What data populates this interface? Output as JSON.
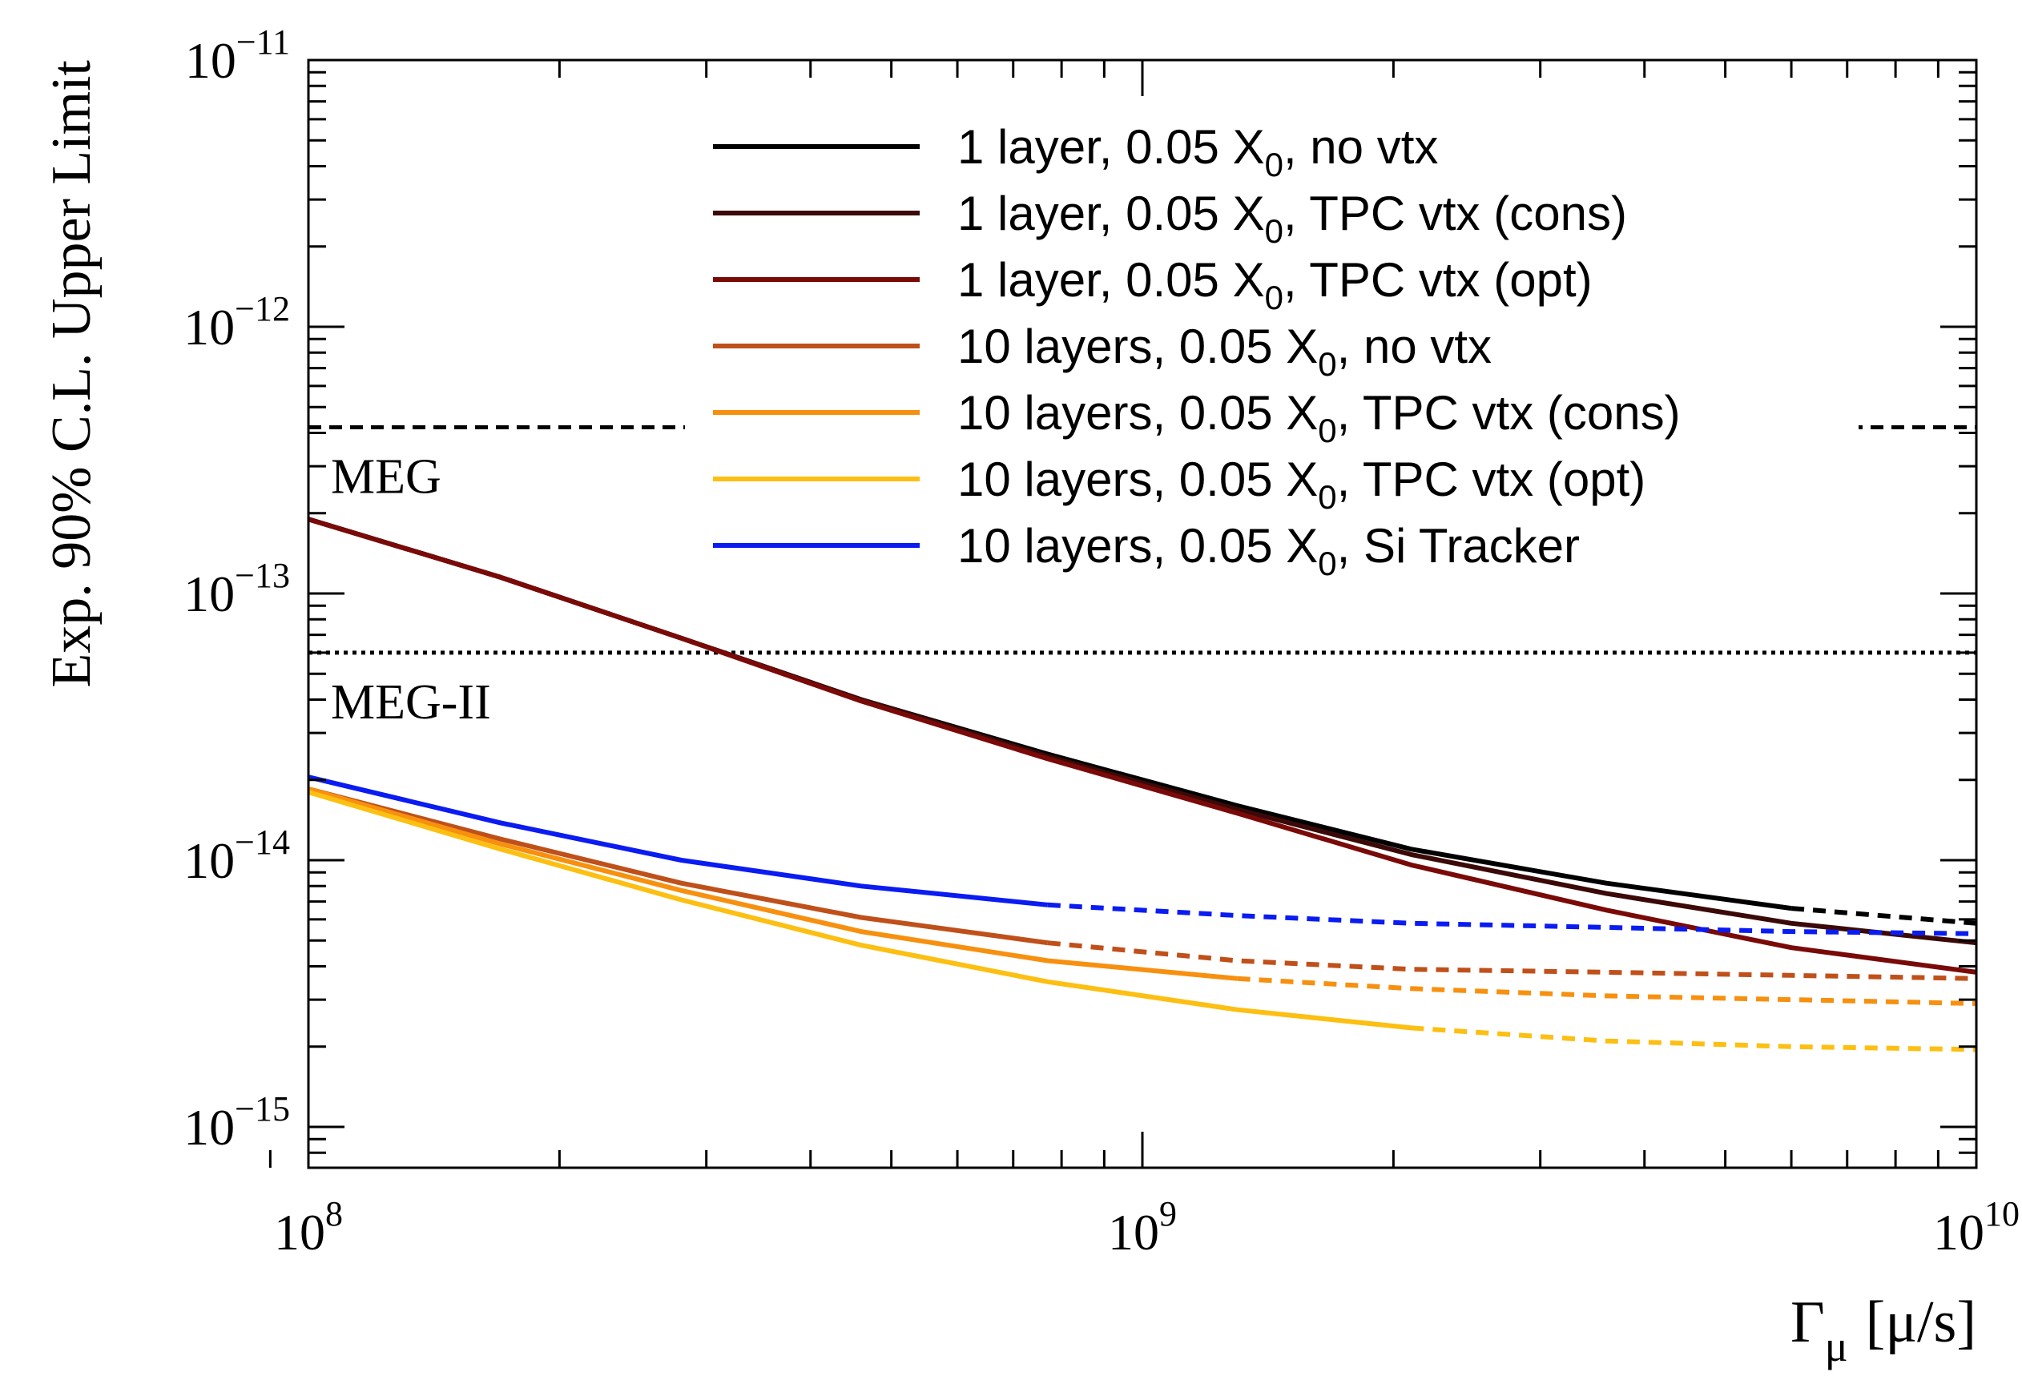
{
  "chart_data": {
    "type": "line",
    "title": "",
    "xlabel": "Γ",
    "xlabel_sub": "μ",
    "xlabel_unit": "[μ/s]",
    "ylabel": "Exp. 90% C.L. Upper Limit",
    "xscale": "log",
    "yscale": "log",
    "xlim": [
      100000000.0,
      10000000000.0
    ],
    "ylim": [
      8e-16,
      1e-11
    ],
    "x_ticks": [
      {
        "value": 100000000.0,
        "base": "10",
        "exp": "8"
      },
      {
        "value": 1000000000.0,
        "base": "10",
        "exp": "9"
      },
      {
        "value": 10000000000.0,
        "base": "10",
        "exp": "10"
      }
    ],
    "y_ticks": [
      {
        "value": 1e-15,
        "base": "10",
        "exp": "−15"
      },
      {
        "value": 1e-14,
        "base": "10",
        "exp": "−14"
      },
      {
        "value": 1e-13,
        "base": "10",
        "exp": "−13"
      },
      {
        "value": 1e-12,
        "base": "10",
        "exp": "−12"
      },
      {
        "value": 1e-11,
        "base": "10",
        "exp": "−11"
      }
    ],
    "reference_lines": [
      {
        "name": "MEG",
        "label": "MEG",
        "value": 4.2e-13,
        "style": "dashed",
        "color": "#000000"
      },
      {
        "name": "MEG-II",
        "label": "MEG-II",
        "value": 6e-14,
        "style": "dotted",
        "color": "#000000"
      }
    ],
    "legend_position": "top-right",
    "series": [
      {
        "name": "1 layer, 0.05 X0, no vtx",
        "legend_main": "1 layer, 0.05 X",
        "legend_sub": "0",
        "legend_rest": ", no vtx",
        "color": "#000000",
        "solid": {
          "x": [
            100000000.0,
            170000000.0,
            280000000.0,
            460000000.0,
            770000000.0,
            1300000000.0,
            2100000000.0,
            3600000000.0,
            6000000000.0
          ],
          "y": [
            1.9e-13,
            1.15e-13,
            6.8e-14,
            4e-14,
            2.5e-14,
            1.6e-14,
            1.1e-14,
            8.2e-15,
            6.6e-15
          ]
        },
        "dashed": {
          "x": [
            6000000000.0,
            10000000000.0
          ],
          "y": [
            6.6e-15,
            5.8e-15
          ]
        }
      },
      {
        "name": "1 layer, 0.05 X0, TPC vtx (cons)",
        "legend_main": "1 layer, 0.05 X",
        "legend_sub": "0",
        "legend_rest": ", TPC vtx (cons)",
        "color": "#3b0a08",
        "solid": {
          "x": [
            100000000.0,
            170000000.0,
            280000000.0,
            460000000.0,
            770000000.0,
            1300000000.0,
            2100000000.0,
            3600000000.0,
            6000000000.0,
            10000000000.0
          ],
          "y": [
            1.9e-13,
            1.15e-13,
            6.8e-14,
            4e-14,
            2.45e-14,
            1.55e-14,
            1.05e-14,
            7.5e-15,
            5.8e-15,
            4.9e-15
          ]
        }
      },
      {
        "name": "1 layer, 0.05 X0, TPC vtx (opt)",
        "legend_main": "1 layer, 0.05 X",
        "legend_sub": "0",
        "legend_rest": ", TPC vtx (opt)",
        "color": "#7a0a08",
        "solid": {
          "x": [
            100000000.0,
            170000000.0,
            280000000.0,
            460000000.0,
            770000000.0,
            1300000000.0,
            2100000000.0,
            3600000000.0,
            6000000000.0,
            10000000000.0
          ],
          "y": [
            1.9e-13,
            1.15e-13,
            6.8e-14,
            3.95e-14,
            2.4e-14,
            1.5e-14,
            9.6e-15,
            6.5e-15,
            4.7e-15,
            3.8e-15
          ]
        }
      },
      {
        "name": "10 layers, 0.05 X0, no vtx",
        "legend_main": "10 layers, 0.05 X",
        "legend_sub": "0",
        "legend_rest": ", no vtx",
        "color": "#c0501a",
        "solid": {
          "x": [
            100000000.0,
            170000000.0,
            280000000.0,
            460000000.0,
            770000000.0
          ],
          "y": [
            1.85e-14,
            1.2e-14,
            8.2e-15,
            6.1e-15,
            4.9e-15
          ]
        },
        "dashed": {
          "x": [
            770000000.0,
            1300000000.0,
            2100000000.0,
            3600000000.0,
            6000000000.0,
            10000000000.0
          ],
          "y": [
            4.9e-15,
            4.2e-15,
            3.9e-15,
            3.8e-15,
            3.7e-15,
            3.6e-15
          ]
        }
      },
      {
        "name": "10 layers, 0.05 X0, TPC vtx (cons)",
        "legend_main": "10 layers, 0.05 X",
        "legend_sub": "0",
        "legend_rest": ", TPC vtx (cons)",
        "color": "#f7900f",
        "solid": {
          "x": [
            100000000.0,
            170000000.0,
            280000000.0,
            460000000.0,
            770000000.0,
            1300000000.0
          ],
          "y": [
            1.85e-14,
            1.15e-14,
            7.7e-15,
            5.4e-15,
            4.2e-15,
            3.6e-15
          ]
        },
        "dashed": {
          "x": [
            1300000000.0,
            2100000000.0,
            3600000000.0,
            6000000000.0,
            10000000000.0
          ],
          "y": [
            3.6e-15,
            3.3e-15,
            3.1e-15,
            3e-15,
            2.9e-15
          ]
        }
      },
      {
        "name": "10 layers, 0.05 X0, TPC vtx (opt)",
        "legend_main": "10 layers, 0.05 X",
        "legend_sub": "0",
        "legend_rest": ", TPC vtx (opt)",
        "color": "#fcbf12",
        "solid": {
          "x": [
            100000000.0,
            170000000.0,
            280000000.0,
            460000000.0,
            770000000.0,
            1300000000.0,
            2100000000.0
          ],
          "y": [
            1.8e-14,
            1.1e-14,
            7.1e-15,
            4.8e-15,
            3.5e-15,
            2.75e-15,
            2.35e-15
          ]
        },
        "dashed": {
          "x": [
            2100000000.0,
            3600000000.0,
            6000000000.0,
            10000000000.0
          ],
          "y": [
            2.35e-15,
            2.1e-15,
            2e-15,
            1.95e-15
          ]
        }
      },
      {
        "name": "10 layers, 0.05 X0, Si Tracker",
        "legend_main": "10 layers, 0.05 X",
        "legend_sub": "0",
        "legend_rest": ", Si Tracker",
        "color": "#0a1cf2",
        "solid": {
          "x": [
            100000000.0,
            170000000.0,
            280000000.0,
            460000000.0,
            770000000.0
          ],
          "y": [
            2.05e-14,
            1.38e-14,
            1e-14,
            8e-15,
            6.8e-15
          ]
        },
        "dashed": {
          "x": [
            770000000.0,
            1300000000.0,
            2100000000.0,
            3600000000.0,
            6000000000.0,
            10000000000.0
          ],
          "y": [
            6.8e-15,
            6.2e-15,
            5.8e-15,
            5.6e-15,
            5.4e-15,
            5.3e-15
          ]
        }
      }
    ]
  }
}
